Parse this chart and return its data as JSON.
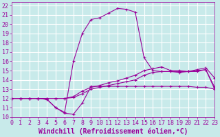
{
  "xlabel": "Windchill (Refroidissement éolien,°C)",
  "xlim": [
    0,
    23
  ],
  "ylim": [
    10,
    22.4
  ],
  "yticks": [
    10,
    11,
    12,
    13,
    14,
    15,
    16,
    17,
    18,
    19,
    20,
    21,
    22
  ],
  "xticks": [
    0,
    1,
    2,
    3,
    4,
    5,
    6,
    7,
    8,
    9,
    10,
    11,
    12,
    13,
    14,
    15,
    16,
    17,
    18,
    19,
    20,
    21,
    22,
    23
  ],
  "bg_color": "#c8eaea",
  "grid_color": "#ffffff",
  "line_color": "#990099",
  "lines": [
    {
      "x": [
        0,
        1,
        2,
        3,
        4,
        5,
        6,
        7,
        8,
        9,
        10,
        11,
        12,
        13,
        14,
        15,
        16,
        17,
        18,
        19,
        20,
        21,
        22,
        23
      ],
      "y": [
        12,
        12,
        12,
        12,
        11.9,
        11.0,
        10.4,
        10.3,
        11.5,
        13.3,
        13.3,
        13.3,
        13.3,
        13.3,
        13.3,
        13.3,
        13.3,
        13.3,
        13.3,
        13.3,
        13.3,
        13.2,
        13.2,
        13.0
      ]
    },
    {
      "x": [
        0,
        1,
        2,
        3,
        4,
        5,
        6,
        7,
        8,
        9,
        10,
        11,
        12,
        13,
        14,
        15,
        16,
        17,
        18,
        19,
        20,
        21,
        22,
        23
      ],
      "y": [
        12,
        12,
        12,
        12,
        12,
        12,
        12,
        12.1,
        12.5,
        13.0,
        13.2,
        13.4,
        13.6,
        13.8,
        14.0,
        14.5,
        14.8,
        14.9,
        14.9,
        14.9,
        14.9,
        15.0,
        15.1,
        13.2
      ]
    },
    {
      "x": [
        0,
        1,
        2,
        3,
        4,
        5,
        6,
        7,
        8,
        9,
        10,
        11,
        12,
        13,
        14,
        15,
        16,
        17,
        18,
        19,
        20,
        21,
        22,
        23
      ],
      "y": [
        12,
        12,
        12,
        12,
        12,
        12,
        12,
        12.2,
        12.8,
        13.2,
        13.4,
        13.7,
        13.9,
        14.2,
        14.5,
        15.0,
        15.2,
        15.4,
        15.0,
        15.0,
        14.9,
        14.9,
        15.1,
        13.0
      ]
    },
    {
      "x": [
        0,
        1,
        2,
        3,
        4,
        5,
        6,
        7,
        8,
        9,
        10,
        11,
        12,
        13,
        14,
        15,
        16,
        17,
        18,
        19,
        20,
        21,
        22,
        23
      ],
      "y": [
        12,
        12,
        12,
        12,
        11.9,
        11.0,
        10.5,
        16.0,
        19.0,
        20.5,
        20.7,
        21.2,
        21.7,
        21.6,
        21.3,
        16.4,
        15.0,
        14.9,
        14.9,
        14.8,
        14.9,
        15.1,
        15.3,
        14.2
      ]
    }
  ],
  "font_family": "monospace",
  "tick_fontsize": 6.0,
  "xlabel_fontsize": 7.0
}
